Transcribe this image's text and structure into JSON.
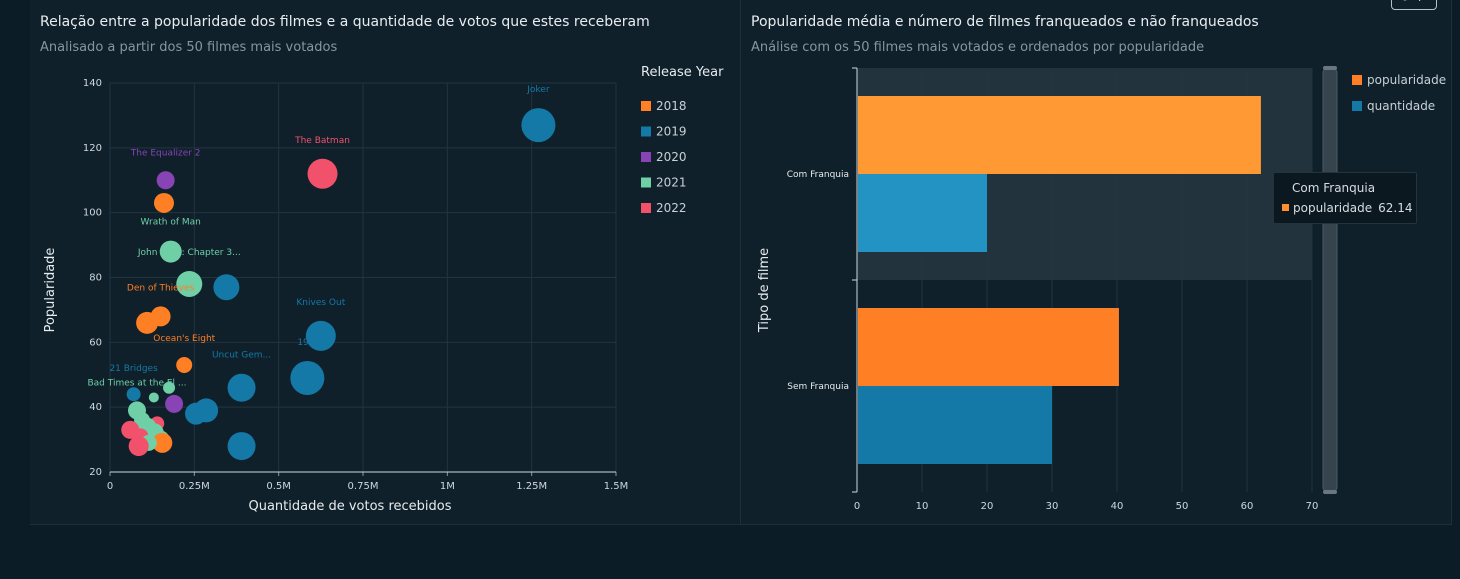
{
  "chart_data": [
    {
      "type": "scatter",
      "title": "Relação entre a popularidade dos filmes e a quantidade de votos que estes receberam",
      "subtitle": "Analisado a partir dos 50 filmes mais votados",
      "xlabel": "Quantidade de votos recebidos",
      "ylabel": "Popularidade",
      "xlim": [
        0,
        1500000
      ],
      "ylim": [
        20,
        140
      ],
      "x_ticks": [
        {
          "value": 0,
          "label": "0"
        },
        {
          "value": 250000,
          "label": "0.25M"
        },
        {
          "value": 500000,
          "label": "0.5M"
        },
        {
          "value": 750000,
          "label": "0.75M"
        },
        {
          "value": 1000000,
          "label": "1M"
        },
        {
          "value": 1250000,
          "label": "1.25M"
        },
        {
          "value": 1500000,
          "label": "1.5M"
        }
      ],
      "y_ticks": [
        20,
        40,
        60,
        80,
        100,
        120,
        140
      ],
      "grid": true,
      "legend_title": "Release Year",
      "legend_position": "right",
      "series": [
        {
          "name": "2018",
          "color": "#ff7f24"
        },
        {
          "name": "2019",
          "color": "#1479a6"
        },
        {
          "name": "2020",
          "color": "#8843b5"
        },
        {
          "name": "2021",
          "color": "#6fcfa6"
        },
        {
          "name": "2022",
          "color": "#f2516b"
        }
      ],
      "points": [
        {
          "year": "2019",
          "x": 1270000,
          "y": 127,
          "size": 17,
          "label": "Joker"
        },
        {
          "year": "2022",
          "x": 630000,
          "y": 112,
          "size": 15,
          "label": "The Batman"
        },
        {
          "year": "2020",
          "x": 165000,
          "y": 110,
          "size": 9,
          "label": "The Equalizer 2"
        },
        {
          "year": "2018",
          "x": 160000,
          "y": 103,
          "size": 10,
          "label": ""
        },
        {
          "year": "2021",
          "x": 180000,
          "y": 88,
          "size": 11,
          "label": "Wrath of Man"
        },
        {
          "year": "2021",
          "x": 235000,
          "y": 78,
          "size": 13,
          "label": "John Wick: Chapter 3..."
        },
        {
          "year": "2019",
          "x": 345000,
          "y": 77,
          "size": 13,
          "label": ""
        },
        {
          "year": "2018",
          "x": 150000,
          "y": 68,
          "size": 10,
          "label": "Den of Thieves"
        },
        {
          "year": "2018",
          "x": 110000,
          "y": 66,
          "size": 11,
          "label": ""
        },
        {
          "year": "2019",
          "x": 625000,
          "y": 62,
          "size": 15,
          "label": "Knives Out"
        },
        {
          "year": "2018",
          "x": 220000,
          "y": 53,
          "size": 8,
          "label": "Ocean's Eight"
        },
        {
          "year": "2019",
          "x": 585000,
          "y": 49,
          "size": 17,
          "label": "19..."
        },
        {
          "year": "2019",
          "x": 390000,
          "y": 46,
          "size": 14,
          "label": "Uncut Gem..."
        },
        {
          "year": "2021",
          "x": 175000,
          "y": 46,
          "size": 6,
          "label": ""
        },
        {
          "year": "2019",
          "x": 70000,
          "y": 44,
          "size": 7,
          "label": "21 Bridges"
        },
        {
          "year": "2021",
          "x": 130000,
          "y": 43,
          "size": 5,
          "label": ""
        },
        {
          "year": "2020",
          "x": 190000,
          "y": 41,
          "size": 9,
          "label": ""
        },
        {
          "year": "2021",
          "x": 80000,
          "y": 39,
          "size": 9,
          "label": "Bad Times at the El ..."
        },
        {
          "year": "2019",
          "x": 285000,
          "y": 39,
          "size": 12,
          "label": ""
        },
        {
          "year": "2019",
          "x": 255000,
          "y": 38,
          "size": 11,
          "label": ""
        },
        {
          "year": "2021",
          "x": 95000,
          "y": 36,
          "size": 8,
          "label": ""
        },
        {
          "year": "2022",
          "x": 140000,
          "y": 35,
          "size": 7,
          "label": ""
        },
        {
          "year": "2021",
          "x": 110000,
          "y": 34,
          "size": 9,
          "label": ""
        },
        {
          "year": "2022",
          "x": 60000,
          "y": 33,
          "size": 9,
          "label": ""
        },
        {
          "year": "2021",
          "x": 130000,
          "y": 32,
          "size": 10,
          "label": ""
        },
        {
          "year": "2022",
          "x": 90000,
          "y": 31,
          "size": 8,
          "label": ""
        },
        {
          "year": "2021",
          "x": 150000,
          "y": 30,
          "size": 9,
          "label": ""
        },
        {
          "year": "2018",
          "x": 155000,
          "y": 29,
          "size": 10,
          "label": ""
        },
        {
          "year": "2021",
          "x": 115000,
          "y": 29,
          "size": 8,
          "label": ""
        },
        {
          "year": "2022",
          "x": 85000,
          "y": 28,
          "size": 10,
          "label": ""
        },
        {
          "year": "2019",
          "x": 390000,
          "y": 28,
          "size": 14,
          "label": ""
        }
      ]
    },
    {
      "type": "bar",
      "orientation": "horizontal",
      "title": "Popularidade média e número de filmes franqueados e não franqueados",
      "subtitle": "Análise com os 50 filmes mais votados e ordenados por popularidade",
      "xlabel": "",
      "ylabel": "Tipo de filme",
      "xlim": [
        0,
        70
      ],
      "x_ticks": [
        0,
        10,
        20,
        30,
        40,
        50,
        60,
        70
      ],
      "categories": [
        "Com Franquia",
        "Sem Franquia"
      ],
      "series": [
        {
          "name": "popularidade",
          "color": "#ff7f24",
          "values": [
            62.14,
            40.3
          ]
        },
        {
          "name": "quantidade",
          "color": "#1479a6",
          "values": [
            20,
            30
          ]
        }
      ],
      "grid": true,
      "legend_position": "top-right",
      "highlighted_category": "Com Franquia",
      "tooltip": {
        "title": "Com Franquia",
        "series": "popularidade",
        "value": "62.14"
      }
    }
  ]
}
